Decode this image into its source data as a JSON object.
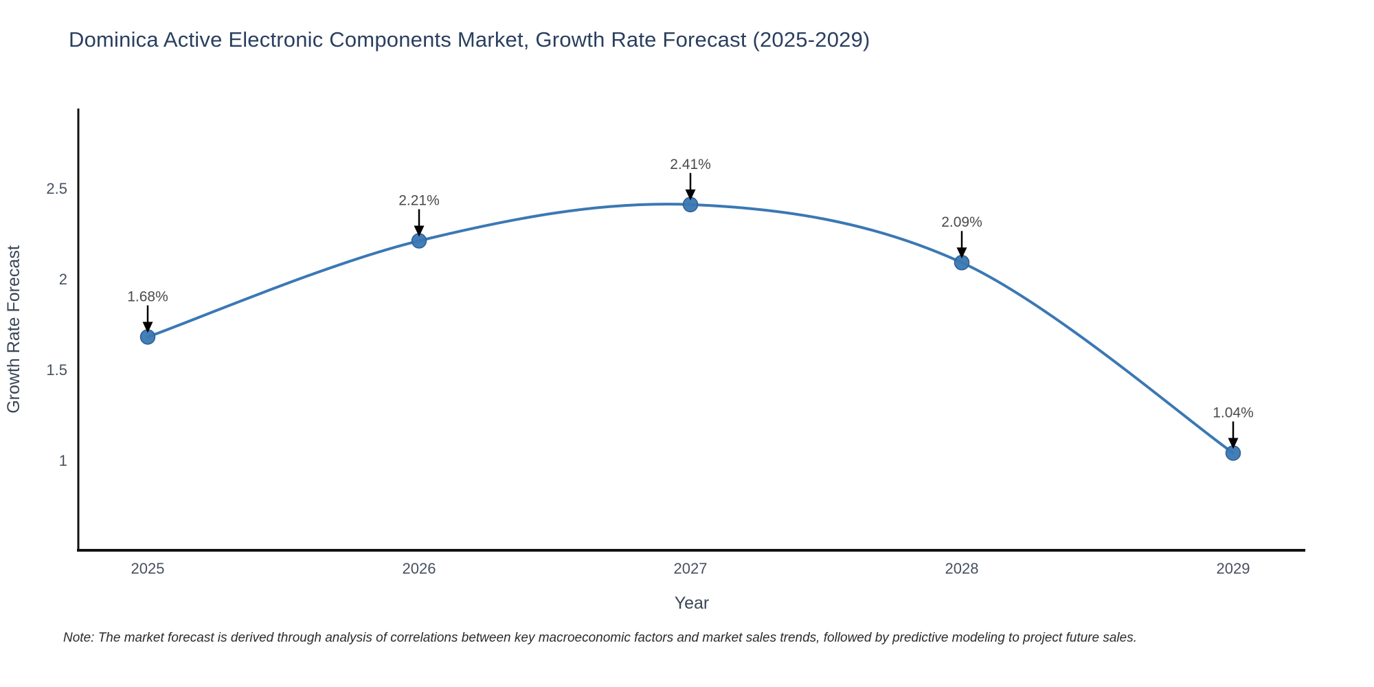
{
  "chart_data": {
    "type": "line",
    "title": "Dominica Active Electronic Components Market, Growth Rate Forecast (2025-2029)",
    "xlabel": "Year",
    "ylabel": "Growth Rate Forecast",
    "categories": [
      "2025",
      "2026",
      "2027",
      "2028",
      "2029"
    ],
    "values": [
      1.68,
      2.21,
      2.41,
      2.09,
      1.04
    ],
    "point_labels": [
      "1.68%",
      "2.21%",
      "2.41%",
      "2.09%",
      "1.04%"
    ],
    "yticks": [
      1,
      1.5,
      2,
      2.5
    ],
    "ytick_labels": [
      "1",
      "1.5",
      "2",
      "2.5"
    ],
    "ylim": [
      0.5,
      2.93
    ],
    "line_shape": "spline",
    "markers": true,
    "grid": false,
    "legend": "none",
    "annotation_arrows": true,
    "note": "Note: The market forecast is derived through analysis of correlations between key macroeconomic factors and market sales trends, followed by predictive modeling to project future sales.",
    "colors": {
      "line": "#3b78b4",
      "marker": "#3a77b3",
      "marker_edge": "#2c5f91",
      "axis": "#111111",
      "title_text": "#2a3f5f",
      "tick_text": "#47505f",
      "axis_title_text": "#3a4556",
      "annotation_text": "#4a4a4a",
      "arrow": "#000000",
      "note_text": "#2b2b2b"
    }
  }
}
